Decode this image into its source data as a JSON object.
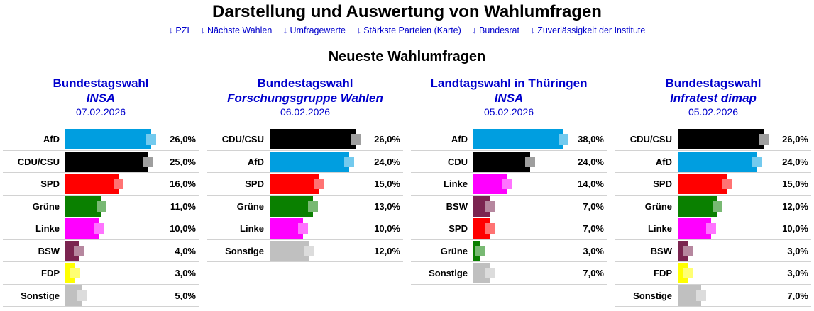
{
  "page_title": "Darstellung und Auswertung von Wahlumfragen",
  "nav": [
    "↓ PZI",
    "↓ Nächste Wahlen",
    "↓ Umfragewerte",
    "↓ Stärkste Parteien (Karte)",
    "↓ Bundesrat",
    "↓ Zuverlässigkeit der Institute"
  ],
  "section_title": "Neueste Wahlumfragen",
  "party_colors": {
    "AfD": "#009ee0",
    "CDU/CSU": "#000000",
    "CDU": "#000000",
    "SPD": "#ff0000",
    "Grüne": "#0a8000",
    "Linke": "#ff00ff",
    "BSW": "#7b2450",
    "FDP": "#ffff00",
    "Sonstige": "#c0c0c0"
  },
  "chart_data": [
    {
      "type": "bar",
      "orientation": "horizontal",
      "title": "Bundestagswahl",
      "institute": "INSA",
      "date": "07.02.2026",
      "categories": [
        "AfD",
        "CDU/CSU",
        "SPD",
        "Grüne",
        "Linke",
        "BSW",
        "FDP",
        "Sonstige"
      ],
      "values": [
        26.0,
        25.0,
        16.0,
        11.0,
        10.0,
        4.0,
        3.0,
        5.0
      ],
      "value_labels": [
        "26,0%",
        "25,0%",
        "16,0%",
        "11,0%",
        "10,0%",
        "4,0%",
        "3,0%",
        "5,0%"
      ],
      "unit": "%",
      "xlim": [
        0,
        30
      ]
    },
    {
      "type": "bar",
      "orientation": "horizontal",
      "title": "Bundestagswahl",
      "institute": "Forschungsgruppe Wahlen",
      "date": "06.02.2026",
      "categories": [
        "CDU/CSU",
        "AfD",
        "SPD",
        "Grüne",
        "Linke",
        "Sonstige"
      ],
      "values": [
        26.0,
        24.0,
        15.0,
        13.0,
        10.0,
        12.0
      ],
      "value_labels": [
        "26,0%",
        "24,0%",
        "15,0%",
        "13,0%",
        "10,0%",
        "12,0%"
      ],
      "unit": "%",
      "xlim": [
        0,
        30
      ]
    },
    {
      "type": "bar",
      "orientation": "horizontal",
      "title": "Landtagswahl in Thüringen",
      "institute": "INSA",
      "date": "05.02.2026",
      "categories": [
        "AfD",
        "CDU",
        "Linke",
        "BSW",
        "SPD",
        "Grüne",
        "Sonstige"
      ],
      "values": [
        38.0,
        24.0,
        14.0,
        7.0,
        7.0,
        3.0,
        7.0
      ],
      "value_labels": [
        "38,0%",
        "24,0%",
        "14,0%",
        "7,0%",
        "7,0%",
        "3,0%",
        "7,0%"
      ],
      "unit": "%",
      "xlim": [
        0,
        42
      ]
    },
    {
      "type": "bar",
      "orientation": "horizontal",
      "title": "Bundestagswahl",
      "institute": "Infratest dimap",
      "date": "05.02.2026",
      "categories": [
        "CDU/CSU",
        "AfD",
        "SPD",
        "Grüne",
        "Linke",
        "BSW",
        "FDP",
        "Sonstige"
      ],
      "values": [
        26.0,
        24.0,
        15.0,
        12.0,
        10.0,
        3.0,
        3.0,
        7.0
      ],
      "value_labels": [
        "26,0%",
        "24,0%",
        "15,0%",
        "12,0%",
        "10,0%",
        "3,0%",
        "3,0%",
        "7,0%"
      ],
      "unit": "%",
      "xlim": [
        0,
        30
      ]
    }
  ]
}
